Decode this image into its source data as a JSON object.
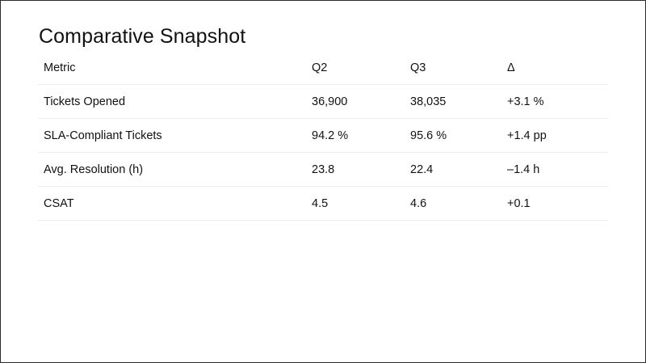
{
  "slide": {
    "title": "Comparative Snapshot"
  },
  "table": {
    "headers": {
      "metric": "Metric",
      "q2": "Q2",
      "q3": "Q3",
      "delta": "Δ"
    },
    "rows": [
      {
        "metric": "Tickets Opened",
        "q2": "36,900",
        "q3": "38,035",
        "delta": "+3.1 %"
      },
      {
        "metric": "SLA-Compliant Tickets",
        "q2": "94.2 %",
        "q3": "95.6 %",
        "delta": "+1.4 pp"
      },
      {
        "metric": "Avg. Resolution (h)",
        "q2": "23.8",
        "q3": "22.4",
        "delta": "–1.4 h"
      },
      {
        "metric": "CSAT",
        "q2": "4.5",
        "q3": "4.6",
        "delta": "+0.1"
      }
    ]
  }
}
